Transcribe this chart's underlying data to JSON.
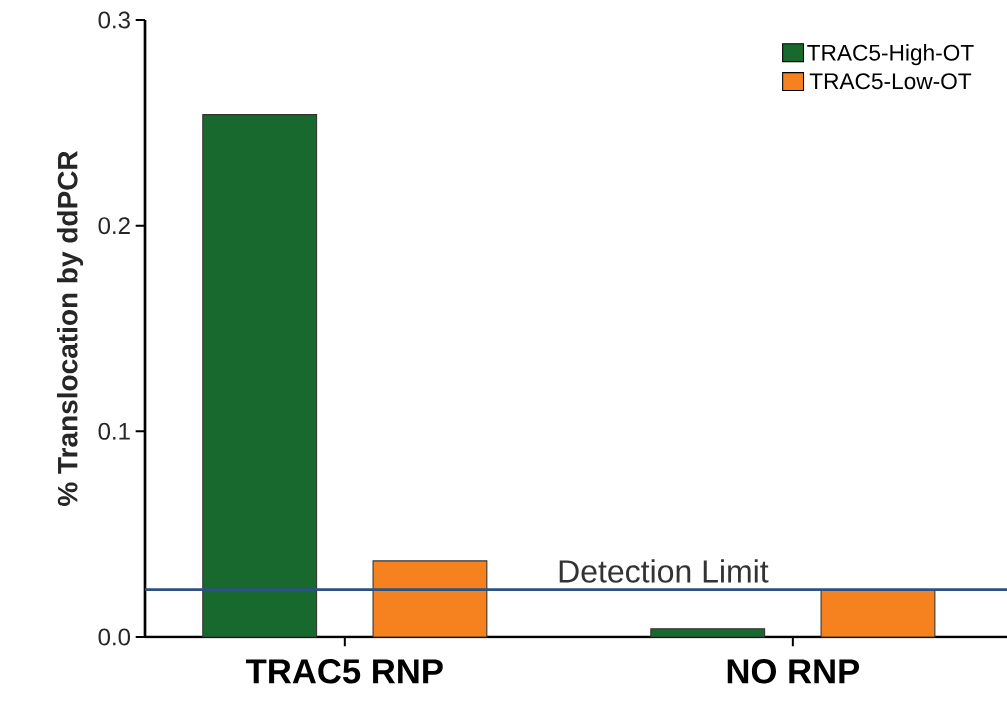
{
  "chart_data": {
    "type": "bar",
    "ylabel": "% Translocation by ddPCR",
    "categories": [
      "TRAC5 RNP",
      "NO RNP"
    ],
    "series": [
      {
        "name": "TRAC5-High-OT",
        "color": "#17692d",
        "values": [
          0.254,
          0.004
        ]
      },
      {
        "name": "TRAC5-Low-OT",
        "color": "#f5821f",
        "values": [
          0.037,
          0.023
        ]
      }
    ],
    "ylim": [
      0,
      0.3
    ],
    "yticks": [
      {
        "value": 0,
        "label": "0.0"
      },
      0.1,
      0.2,
      0.3
    ],
    "ref_lines": [
      {
        "axis": "y",
        "value": 0.023,
        "label": "Detection Limit",
        "color": "#2b5282"
      }
    ],
    "legend": "top right",
    "grid": false
  }
}
